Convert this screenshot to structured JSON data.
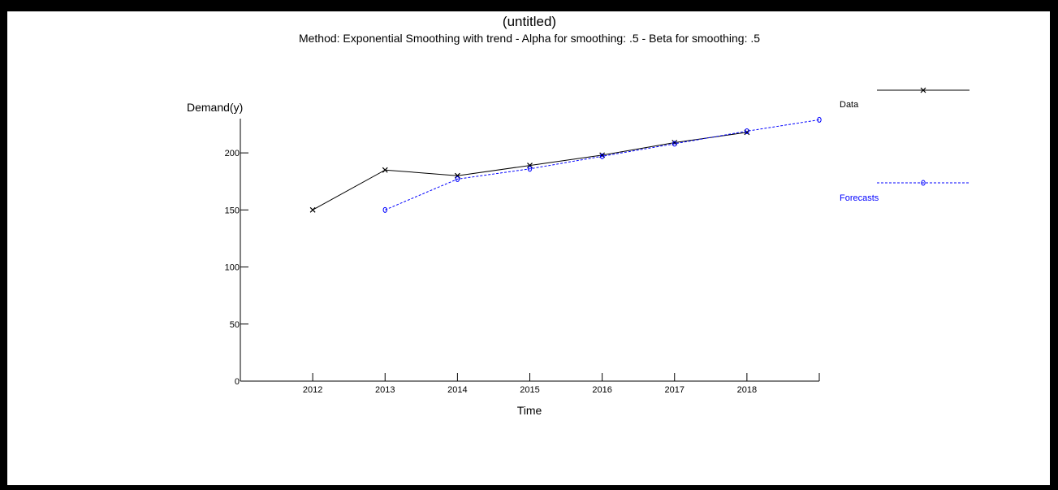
{
  "chart_data": {
    "type": "line",
    "title": "(untitled)",
    "subtitle": "Method: Exponential Smoothing with trend - Alpha for smoothing:  .5 - Beta for smoothing:  .5",
    "xlabel": "Time",
    "ylabel": "Demand(y)",
    "x": [
      2012,
      2013,
      2014,
      2015,
      2016,
      2017,
      2018
    ],
    "xlim": [
      2011,
      2019
    ],
    "ylim": [
      0,
      230
    ],
    "yticks": [
      0,
      50,
      100,
      150,
      200
    ],
    "grid": false,
    "legend_position": "right",
    "series": [
      {
        "name": "Data",
        "color": "#000000",
        "style": "solid",
        "marker": "x",
        "points": [
          [
            2012,
            150
          ],
          [
            2013,
            185
          ],
          [
            2014,
            180
          ],
          [
            2015,
            189
          ],
          [
            2016,
            198
          ],
          [
            2017,
            209
          ],
          [
            2018,
            218
          ]
        ]
      },
      {
        "name": "Forecasts",
        "color": "#0000ff",
        "style": "dashed",
        "marker": "o",
        "points": [
          [
            2013,
            150
          ],
          [
            2014,
            177
          ],
          [
            2015,
            186
          ],
          [
            2016,
            197
          ],
          [
            2017,
            208
          ],
          [
            2018,
            219
          ],
          [
            2019,
            229
          ]
        ]
      }
    ]
  }
}
